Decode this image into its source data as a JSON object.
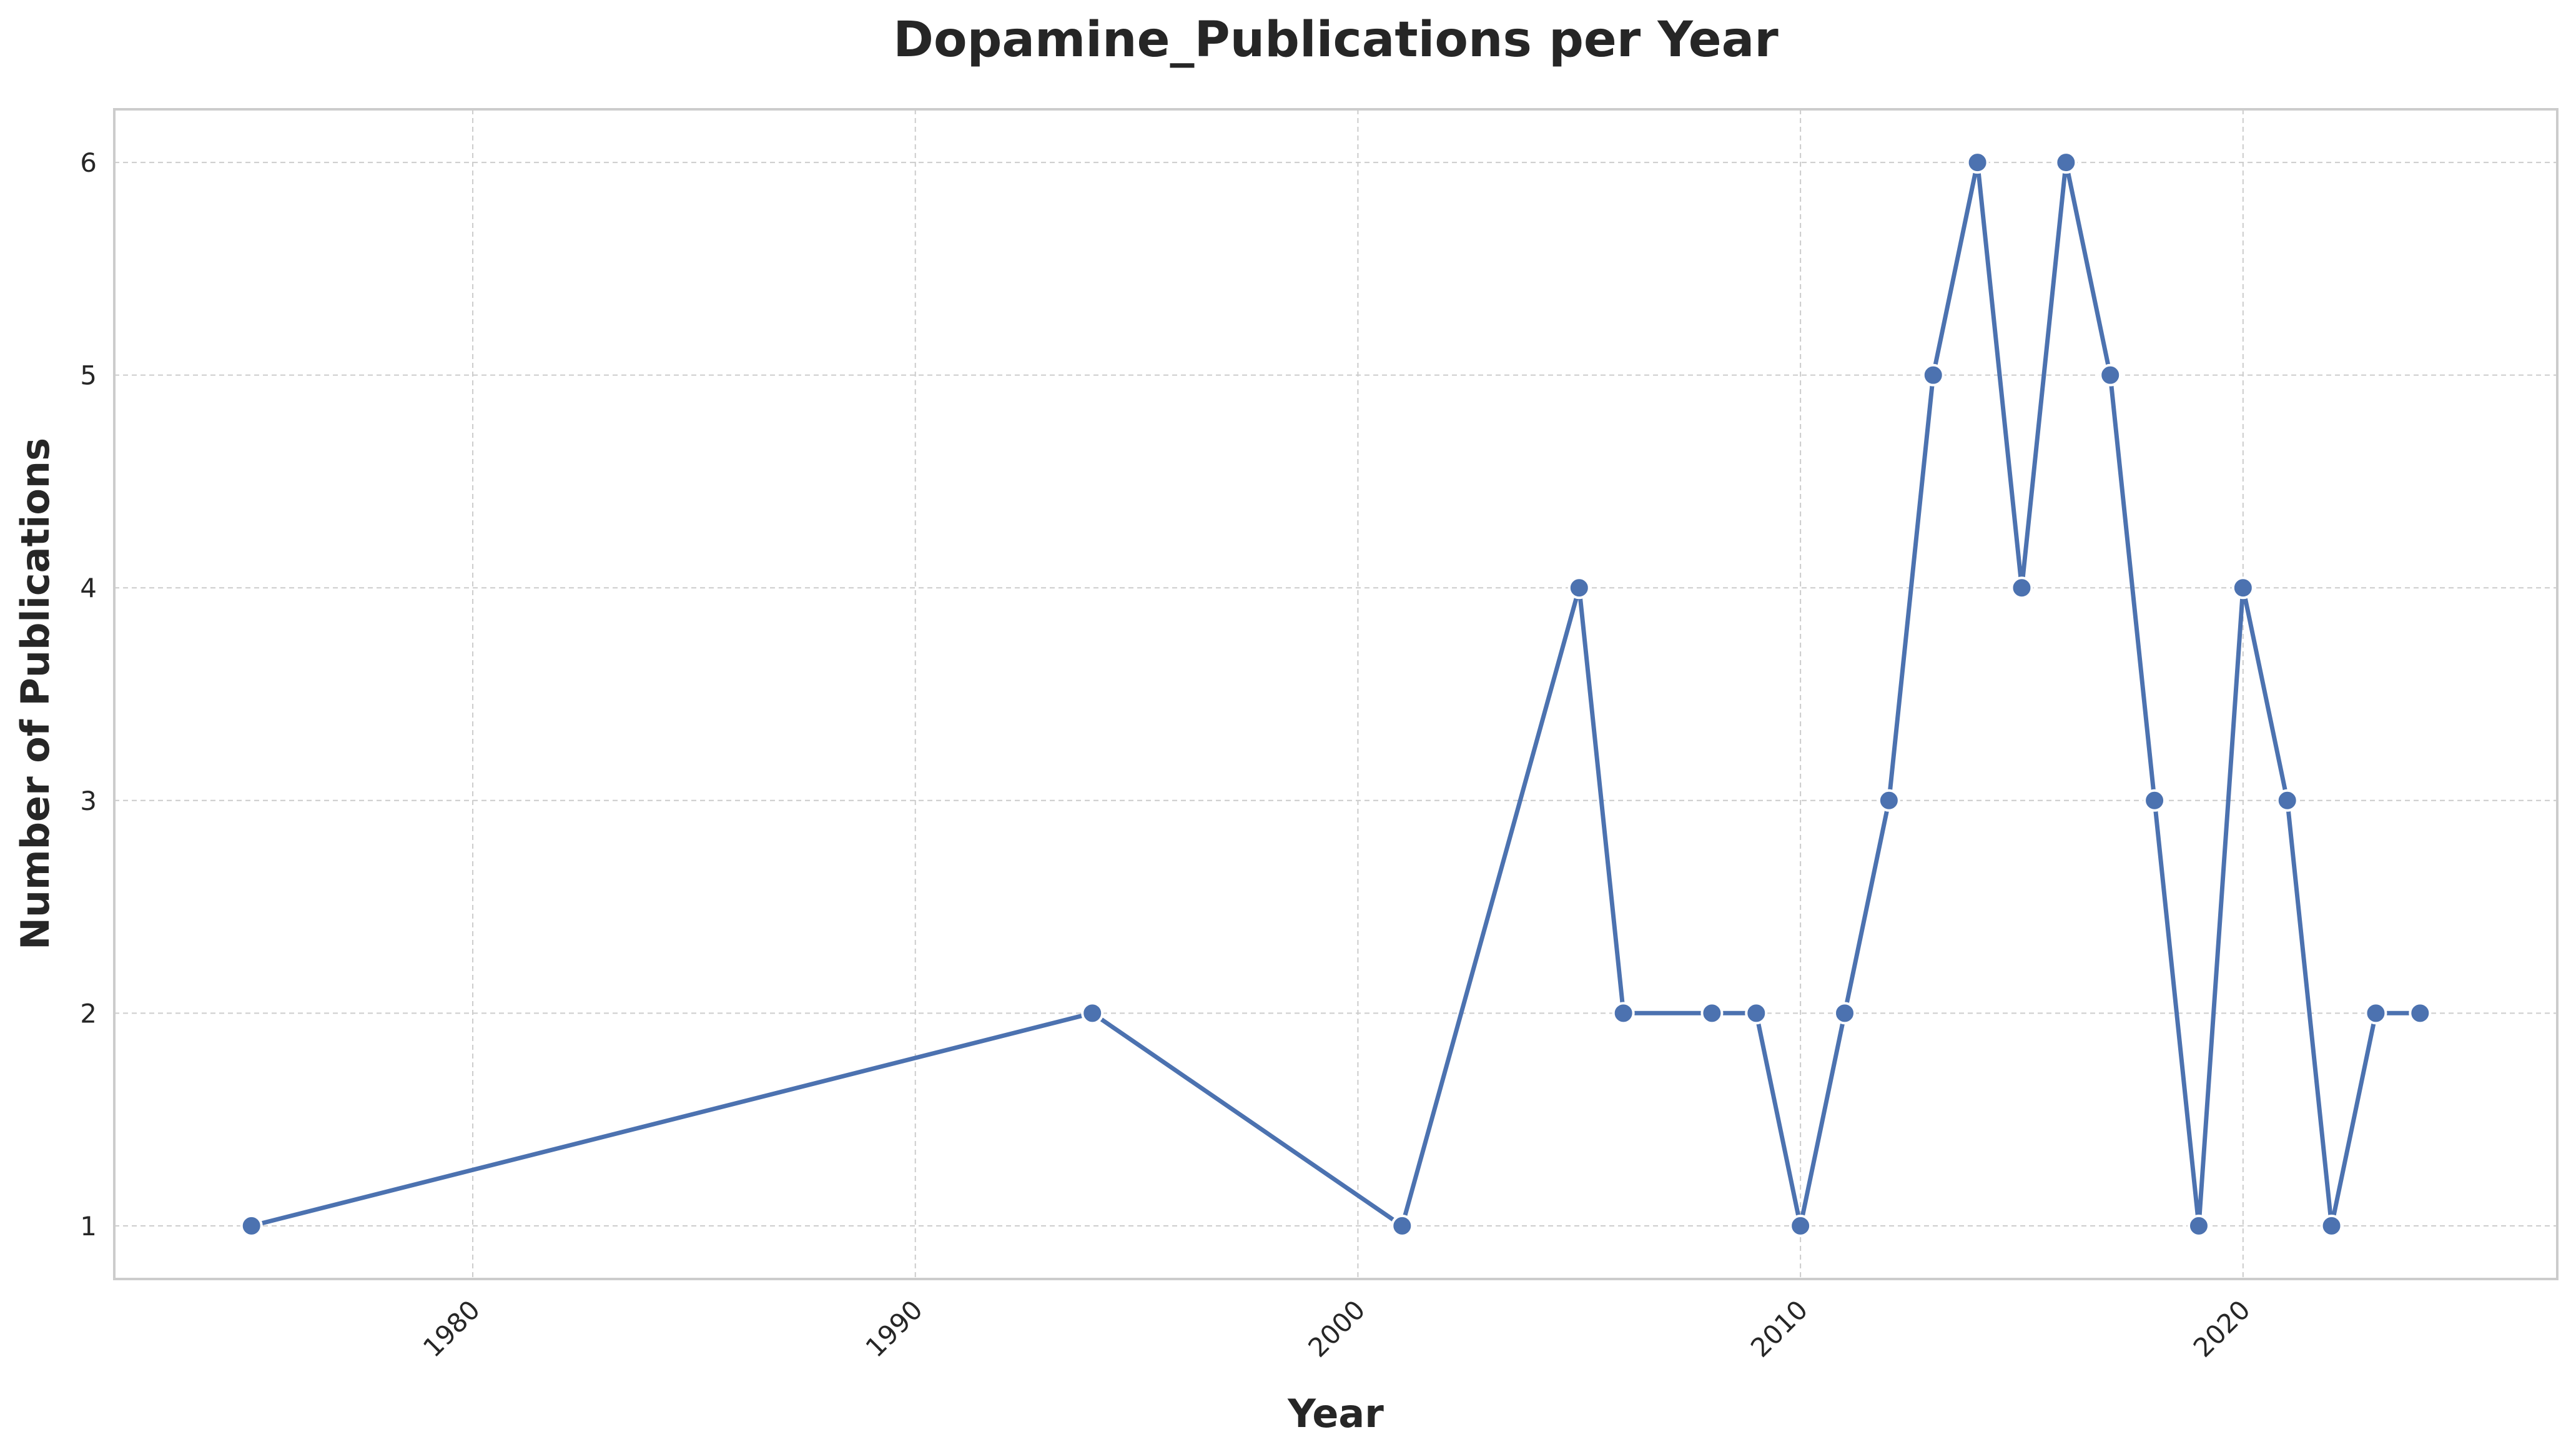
{
  "chart_data": {
    "type": "line",
    "title": "Dopamine_Publications per Year",
    "xlabel": "Year",
    "ylabel": "Number of Publications",
    "x_ticks": [
      1980,
      1990,
      2000,
      2010,
      2020
    ],
    "y_ticks": [
      1,
      2,
      3,
      4,
      5,
      6
    ],
    "xlim": [
      1971.9,
      2027.1
    ],
    "ylim": [
      0.75,
      6.25
    ],
    "grid": true,
    "series": [
      {
        "color": "#4c72b0",
        "x": [
          1975,
          1994,
          2001,
          2005,
          2006,
          2008,
          2009,
          2010,
          2011,
          2012,
          2013,
          2014,
          2015,
          2016,
          2017,
          2018,
          2019,
          2020,
          2021,
          2022,
          2023,
          2024
        ],
        "y": [
          1,
          2,
          1,
          4,
          2,
          2,
          2,
          1,
          2,
          3,
          5,
          6,
          4,
          6,
          5,
          3,
          1,
          4,
          3,
          1,
          2,
          2
        ]
      }
    ]
  }
}
